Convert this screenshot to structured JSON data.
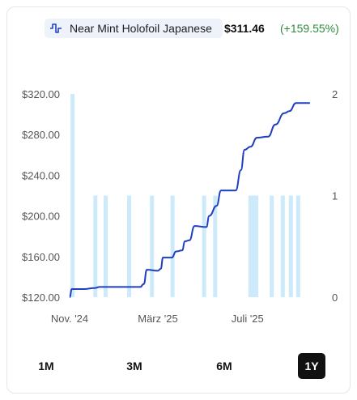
{
  "legend": {
    "icon": "waveform-icon",
    "label": "Near Mint Holofoil Japanese",
    "price": "$311.46",
    "change": "(+159.55%)",
    "change_color": "#2e8b3a"
  },
  "range_buttons": [
    {
      "label": "1M",
      "active": false
    },
    {
      "label": "3M",
      "active": false
    },
    {
      "label": "6M",
      "active": false
    },
    {
      "label": "1Y",
      "active": true
    }
  ],
  "colors": {
    "line": "#1f3fc2",
    "bars": "#cdeafb",
    "active_button_bg": "#111111"
  },
  "chart_data": {
    "type": "line",
    "title": "",
    "xlabel": "",
    "ylabel": "",
    "y_ticks": [
      "$320.00",
      "$280.00",
      "$240.00",
      "$200.00",
      "$160.00",
      "$120.00"
    ],
    "y_tick_values": [
      320,
      280,
      240,
      200,
      160,
      120
    ],
    "ylim": [
      120,
      320
    ],
    "y2_ticks": [
      "2",
      "1",
      "0"
    ],
    "y2_tick_values": [
      2,
      1,
      0
    ],
    "y2lim": [
      0,
      2
    ],
    "x_ticks": [
      "Nov. '24",
      "März '25",
      "Juli '25"
    ],
    "x_tick_dates": [
      "2024-11-01",
      "2025-03-01",
      "2025-07-01"
    ],
    "xlim": [
      "2024-11-01",
      "2025-10-15"
    ],
    "grid": false,
    "series": [
      {
        "kind": "line",
        "axis": "left",
        "points": [
          [
            "2024-11-01",
            120
          ],
          [
            "2024-11-04",
            128
          ],
          [
            "2024-11-20",
            128
          ],
          [
            "2024-12-05",
            129
          ],
          [
            "2024-12-12",
            130
          ],
          [
            "2025-02-05",
            130
          ],
          [
            "2025-02-10",
            133
          ],
          [
            "2025-02-14",
            147
          ],
          [
            "2025-03-01",
            146
          ],
          [
            "2025-03-05",
            148
          ],
          [
            "2025-03-08",
            159
          ],
          [
            "2025-03-20",
            159
          ],
          [
            "2025-03-26",
            165
          ],
          [
            "2025-04-03",
            166
          ],
          [
            "2025-04-07",
            175
          ],
          [
            "2025-04-13",
            176
          ],
          [
            "2025-04-20",
            190
          ],
          [
            "2025-05-06",
            189
          ],
          [
            "2025-05-10",
            200
          ],
          [
            "2025-05-20",
            210
          ],
          [
            "2025-05-26",
            225
          ],
          [
            "2025-06-15",
            225
          ],
          [
            "2025-06-22",
            245
          ],
          [
            "2025-06-27",
            265
          ],
          [
            "2025-07-05",
            268
          ],
          [
            "2025-07-14",
            277
          ],
          [
            "2025-07-29",
            278
          ],
          [
            "2025-08-08",
            290
          ],
          [
            "2025-08-20",
            301
          ],
          [
            "2025-08-27",
            303
          ],
          [
            "2025-09-05",
            311
          ],
          [
            "2025-09-24",
            311
          ]
        ]
      },
      {
        "kind": "bar",
        "axis": "right",
        "points": [
          [
            "2024-11-05",
            2
          ],
          [
            "2024-12-06",
            1
          ],
          [
            "2024-12-20",
            1
          ],
          [
            "2025-01-21",
            1
          ],
          [
            "2025-02-21",
            1
          ],
          [
            "2025-03-21",
            1
          ],
          [
            "2025-05-03",
            1
          ],
          [
            "2025-05-18",
            1
          ],
          [
            "2025-07-05",
            1
          ],
          [
            "2025-07-09",
            1
          ],
          [
            "2025-07-13",
            1
          ],
          [
            "2025-08-03",
            1
          ],
          [
            "2025-08-18",
            1
          ],
          [
            "2025-08-29",
            1
          ],
          [
            "2025-09-08",
            1
          ]
        ]
      }
    ]
  }
}
